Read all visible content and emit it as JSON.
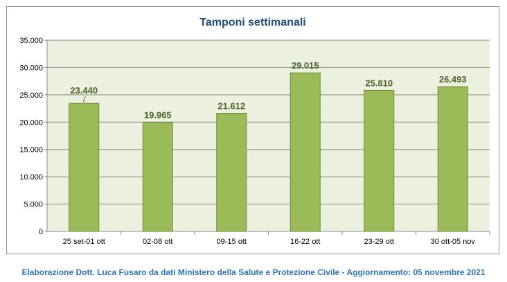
{
  "chart_data": {
    "type": "bar",
    "title": "Tamponi settimanali",
    "categories": [
      "25 set-01 ott",
      "02-08 ott",
      "09-15 ott",
      "16-22 ott",
      "23-29 ott",
      "30 ott-05 nov"
    ],
    "values": [
      23440,
      19965,
      21612,
      29015,
      25810,
      26493
    ],
    "value_labels": [
      "23.440",
      "19.965",
      "21.612",
      "29.015",
      "25.810",
      "26.493"
    ],
    "ylim": [
      0,
      35000
    ],
    "yticks": [
      0,
      5000,
      10000,
      15000,
      20000,
      25000,
      30000,
      35000
    ],
    "ytick_labels": [
      "0",
      "5.000",
      "10.000",
      "15.000",
      "20.000",
      "25.000",
      "30.000",
      "35.000"
    ],
    "grid": true,
    "legend": "none",
    "colors": {
      "bar_fill": "#9bbb59",
      "bar_stroke": "#6a8a3a",
      "plot_bg": "#ebf1de",
      "title": "#1f4e79",
      "data_label": "#4f6228"
    }
  },
  "footer": {
    "text": "Elaborazione Dott. Luca Fusaro da dati Ministero della Salute e Protezione Civile - Aggiornamento: 05 novembre 2021"
  }
}
